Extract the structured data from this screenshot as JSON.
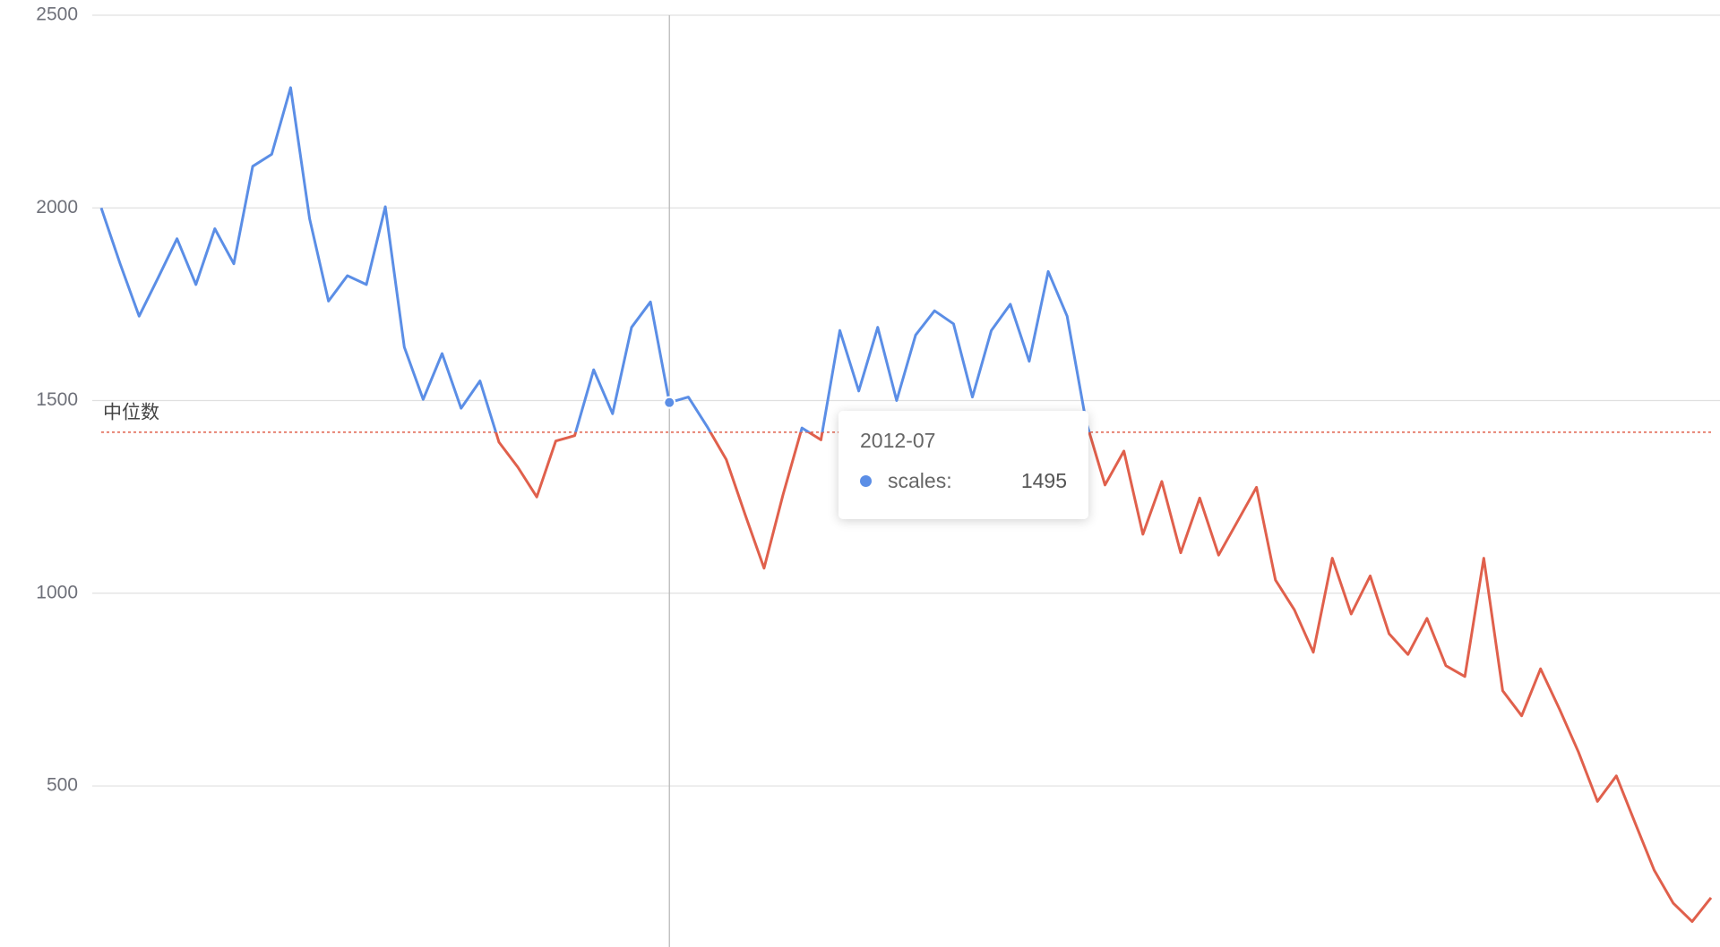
{
  "chart_data": {
    "type": "line",
    "categories": [
      null,
      null,
      null,
      null,
      null,
      null,
      null,
      null,
      null,
      null,
      null,
      null,
      null,
      null,
      null,
      null,
      null,
      null,
      null,
      null,
      null,
      null,
      null,
      null,
      null,
      null,
      null,
      null,
      null,
      null,
      "2012-07",
      null,
      null,
      null,
      null,
      null,
      null,
      null,
      null,
      null,
      null,
      null,
      null,
      null,
      null,
      null,
      null,
      null,
      null,
      null,
      null,
      null,
      null,
      null,
      null,
      null,
      null,
      null,
      null,
      null,
      null,
      null,
      null,
      null,
      null,
      null,
      null,
      null,
      null,
      null,
      null,
      null,
      null,
      null,
      null,
      null,
      null,
      null,
      null,
      null,
      null,
      null,
      null,
      null,
      null,
      null
    ],
    "series": [
      {
        "name": "scales",
        "color": "#5b8ee6",
        "below_color": "#e0604c",
        "values": [
          2000,
          1855,
          1719,
          1818,
          1920,
          1801,
          1946,
          1855,
          2108,
          2139,
          2312,
          1972,
          1758,
          1824,
          1801,
          2003,
          1639,
          1503,
          1622,
          1480,
          1551,
          1392,
          1327,
          1250,
          1395,
          1409,
          1580,
          1466,
          1690,
          1756,
          1495,
          1509,
          1432,
          1347,
          1204,
          1065,
          1256,
          1429,
          1398,
          1682,
          1525,
          1690,
          1500,
          1670,
          1733,
          1699,
          1509,
          1682,
          1750,
          1602,
          1835,
          1719,
          1446,
          1281,
          1369,
          1153,
          1290,
          1105,
          1247,
          1099,
          1187,
          1275,
          1034,
          957,
          847,
          1091,
          946,
          1045,
          895,
          841,
          935,
          812,
          784,
          1091,
          747,
          682,
          804,
          699,
          588,
          460,
          526,
          403,
          281,
          196,
          148,
          210
        ]
      }
    ],
    "mark_line": {
      "name": "中位数",
      "value": 1418,
      "color": "#e0604c"
    },
    "tooltip": {
      "label": "scales:"
    },
    "ylim": [
      82,
      2500
    ],
    "yticks": [
      500,
      1000,
      1500,
      2000,
      2500
    ],
    "grid": true
  }
}
